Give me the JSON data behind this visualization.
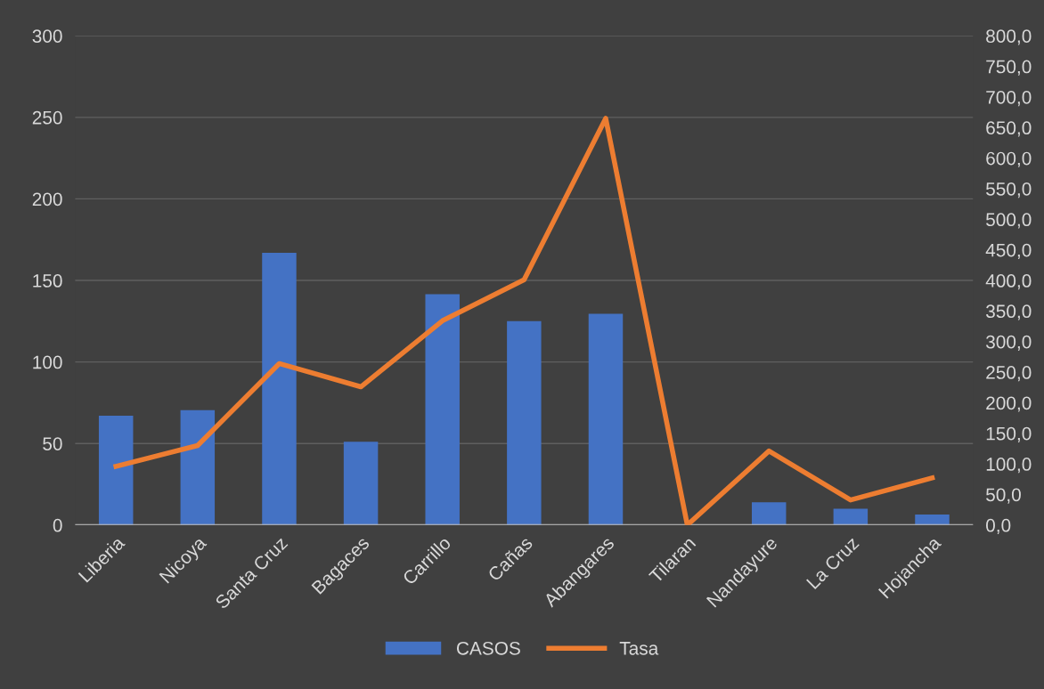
{
  "chart_data": {
    "type": "bar",
    "categories": [
      "Liberia",
      "Nicoya",
      "Santa Cruz",
      "Bagaces",
      "Carrillo",
      "Cañas",
      "Abangares",
      "Tilaran",
      "Nandayure",
      "La Cruz",
      "Hojancha"
    ],
    "series": [
      {
        "name": "CASOS",
        "color": "#4472c4",
        "values": [
          67,
          70.5,
          167,
          51,
          141.5,
          125,
          129.5,
          0,
          14,
          10,
          6.5
        ]
      },
      {
        "name": "Tasa",
        "type": "line",
        "axis": "y2",
        "color": "#ed7d31",
        "values": [
          96,
          130,
          264,
          226,
          334,
          401,
          665,
          0,
          121,
          41,
          77
        ]
      }
    ],
    "ylim": [
      0,
      300
    ],
    "yticks": [
      0,
      50,
      100,
      150,
      200,
      250,
      300
    ],
    "y2lim": [
      0,
      800
    ],
    "y2ticks": [
      {
        "value": 0,
        "label": "0,0"
      },
      {
        "value": 50,
        "label": "50,0"
      },
      {
        "value": 100,
        "label": "100,0"
      },
      {
        "value": 150,
        "label": "150,0"
      },
      {
        "value": 200,
        "label": "200,0"
      },
      {
        "value": 250,
        "label": "250,0"
      },
      {
        "value": 300,
        "label": "300,0"
      },
      {
        "value": 350,
        "label": "350,0"
      },
      {
        "value": 400,
        "label": "400,0"
      },
      {
        "value": 450,
        "label": "450,0"
      },
      {
        "value": 500,
        "label": "500,0"
      },
      {
        "value": 550,
        "label": "550,0"
      },
      {
        "value": 600,
        "label": "600,0"
      },
      {
        "value": 650,
        "label": "650,0"
      },
      {
        "value": 700,
        "label": "700,0"
      },
      {
        "value": 750,
        "label": "750,0"
      },
      {
        "value": 800,
        "label": "800,0"
      }
    ],
    "grid": "y",
    "legend": "bottom",
    "marker": "none",
    "line_style": "solid"
  }
}
